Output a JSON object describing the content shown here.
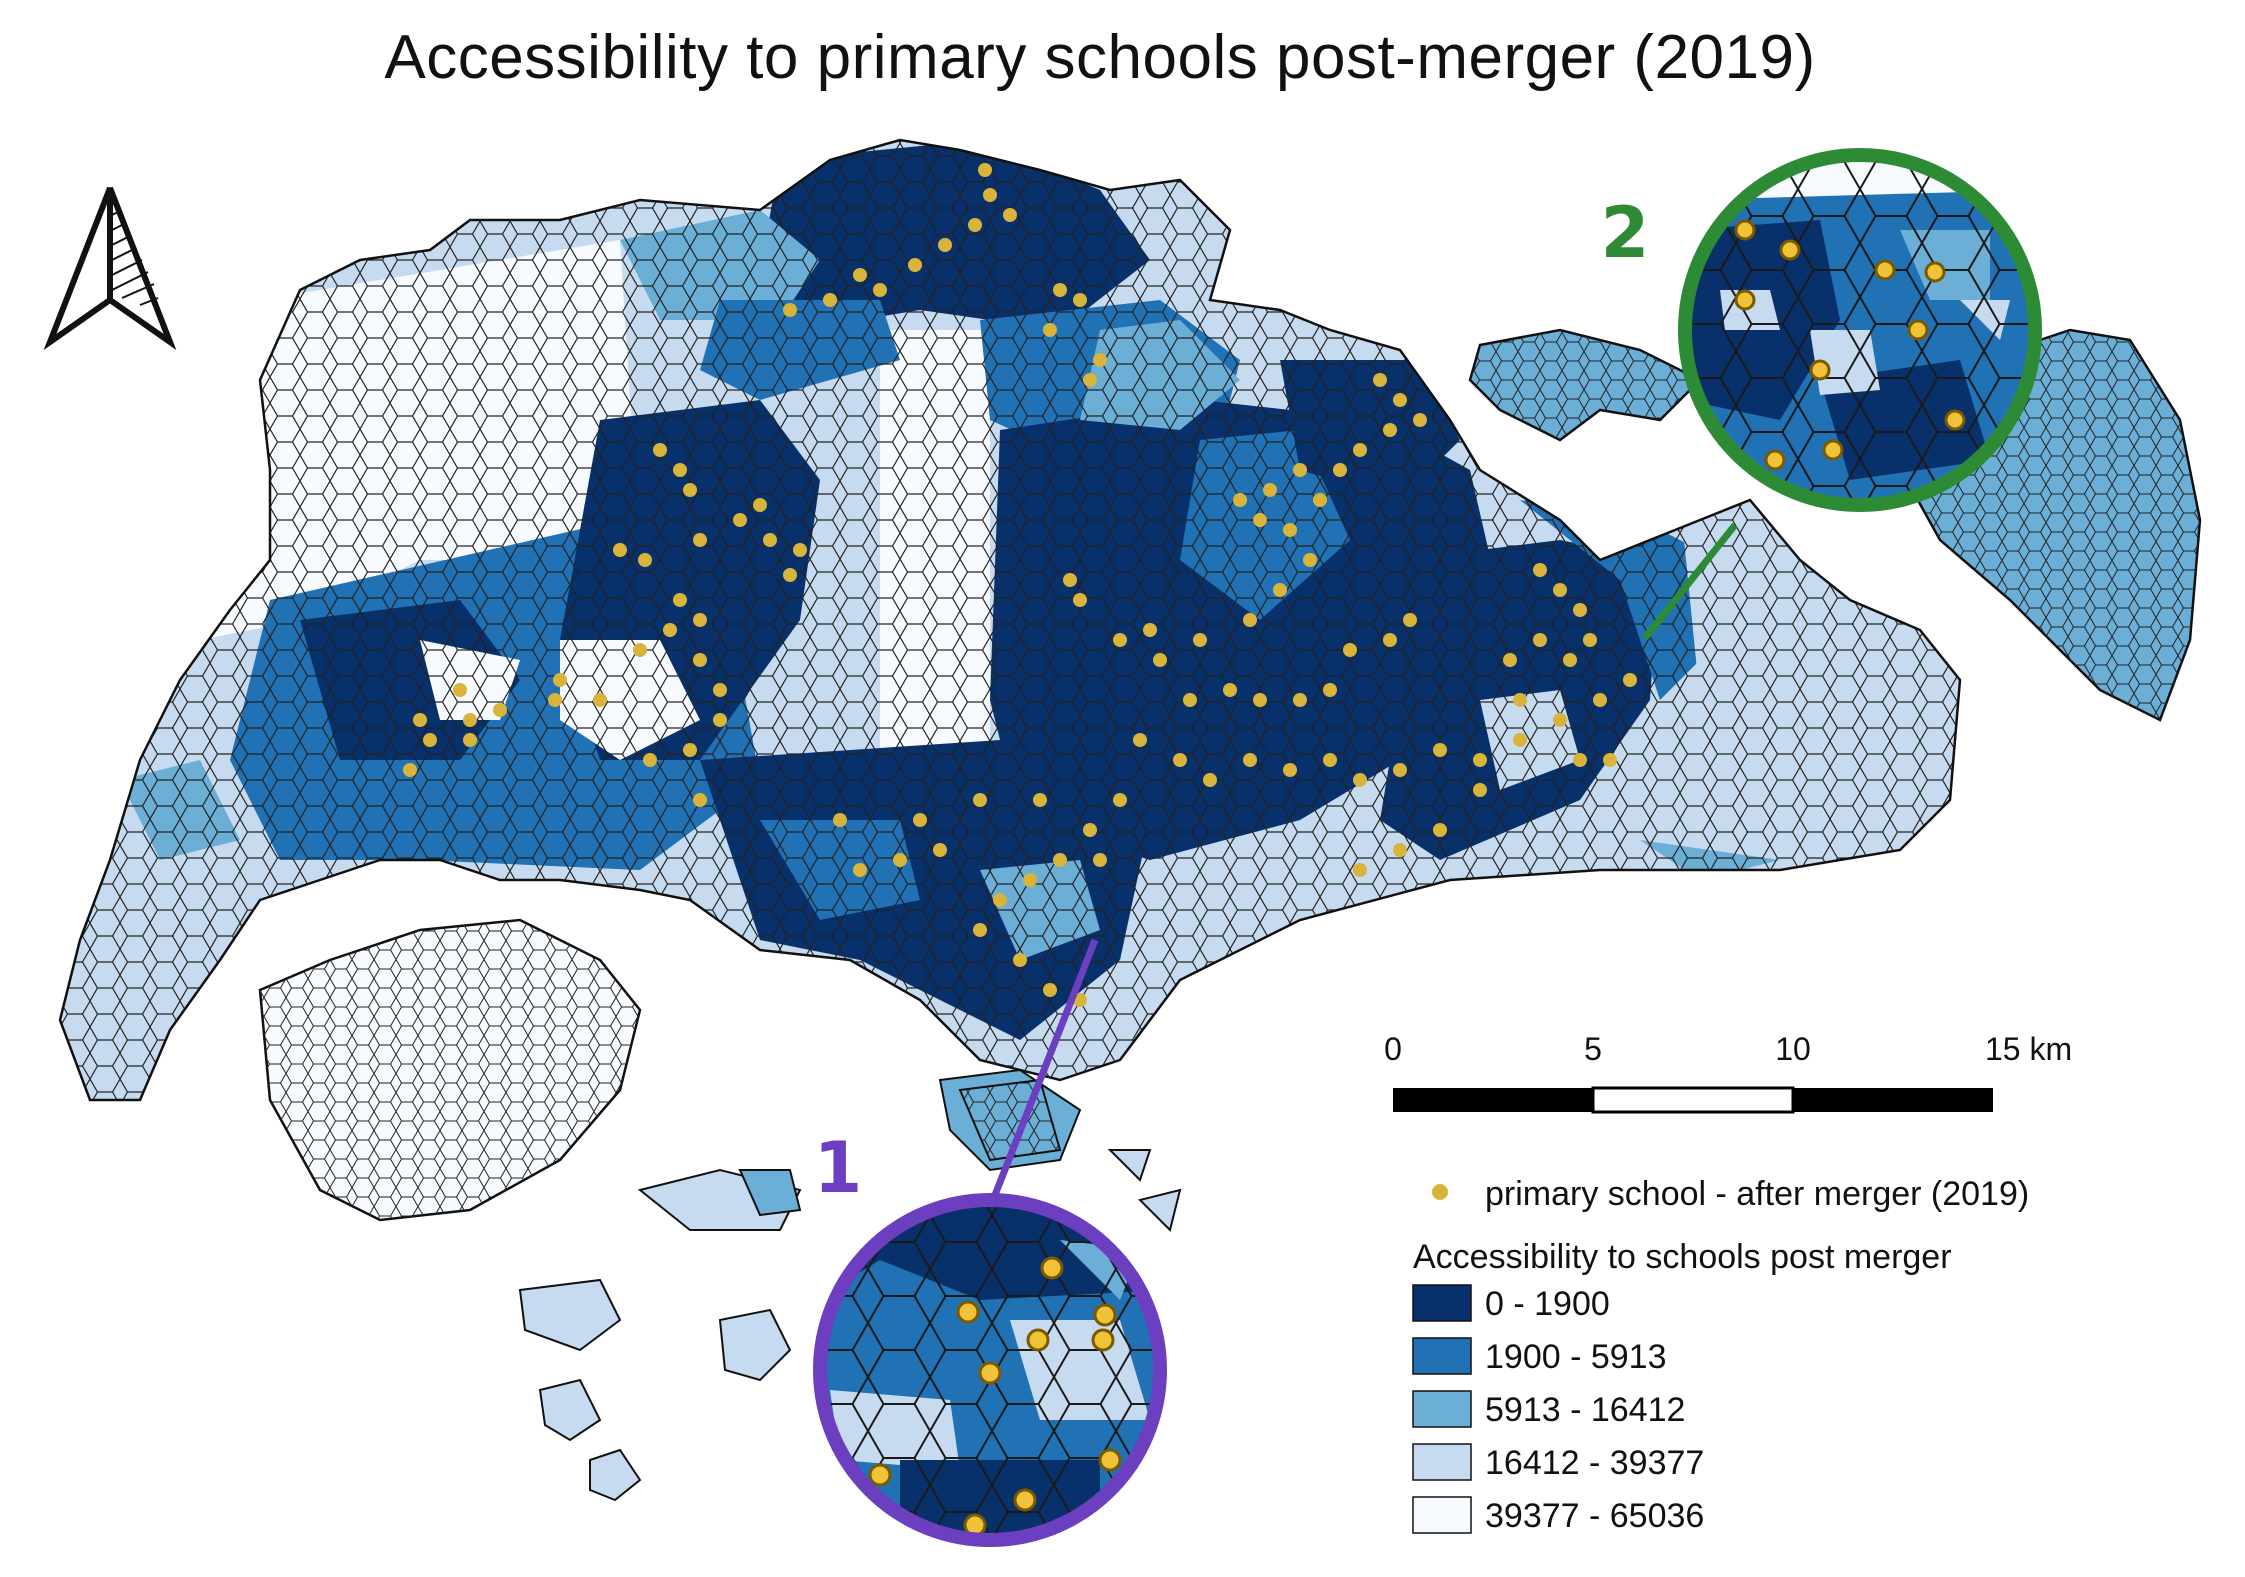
{
  "title": "Accessibility to primary schools post-merger (2019)",
  "north_arrow": {
    "icon": "north-arrow-icon"
  },
  "scale_bar": {
    "labels": [
      "0",
      "5",
      "10",
      "15 km"
    ]
  },
  "callouts": [
    {
      "label": "1",
      "color": "#6B3FC0"
    },
    {
      "label": "2",
      "color": "#2E8B35"
    }
  ],
  "legend": {
    "school_symbol_label": "primary school - after merger (2019)",
    "school_color": "#D9B43A",
    "heading": "Accessibility to schools post merger",
    "classes": [
      {
        "label": "0 - 1900",
        "color": "#08306B"
      },
      {
        "label": "1900 - 5913",
        "color": "#2171B5"
      },
      {
        "label": "5913 - 16412",
        "color": "#6BAED6"
      },
      {
        "label": "16412 - 39377",
        "color": "#C6DBEF"
      },
      {
        "label": "39377 - 65036",
        "color": "#F7FBFF"
      }
    ]
  }
}
